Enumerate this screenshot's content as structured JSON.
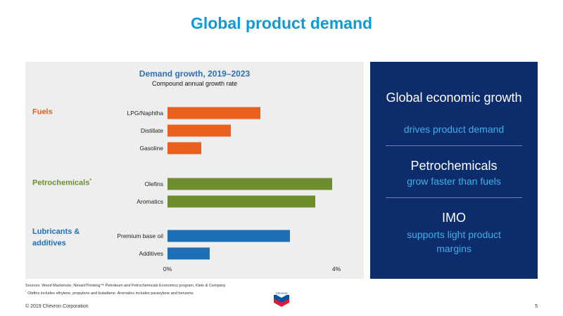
{
  "title": "Global product demand",
  "chart_data": {
    "type": "bar",
    "orientation": "horizontal",
    "title": "Demand growth, 2019–2023",
    "subtitle": "Compound annual growth rate",
    "xlim": [
      0,
      4
    ],
    "x_ticks": [
      {
        "value": 0,
        "label": "0%"
      },
      {
        "value": 4,
        "label": "4%"
      }
    ],
    "groups": [
      {
        "label": "Fuels",
        "marker": "",
        "color": "#e8601c"
      },
      {
        "label": "Petrochemicals",
        "marker": "*",
        "color": "#6d8e2f"
      },
      {
        "label": "Lubricants & additives",
        "marker": "",
        "color": "#1f6fb7"
      }
    ],
    "categories": [
      {
        "label": "LPG/Naphtha",
        "group": 0,
        "value": 2.2
      },
      {
        "label": "Distillate",
        "group": 0,
        "value": 1.5
      },
      {
        "label": "Gasoline",
        "group": 0,
        "value": 0.8
      },
      {
        "label": "Olefins",
        "group": 1,
        "value": 3.9
      },
      {
        "label": "Aromatics",
        "group": 1,
        "value": 3.5
      },
      {
        "label": "Premium base oil",
        "group": 2,
        "value": 2.9
      },
      {
        "label": "Additives",
        "group": 2,
        "value": 1.0
      }
    ]
  },
  "right_panel": {
    "item1": {
      "heading": "Global economic growth",
      "sub": "drives product demand"
    },
    "item2": {
      "heading": "Petrochemicals",
      "sub": "grow faster than fuels"
    },
    "item3": {
      "heading": "IMO",
      "sub": "supports light product margins"
    }
  },
  "footer": {
    "sources": "Sources: Wood Mackenzie, NexantThinking™ Petroleum and Petrochemicals Economics program, Klein & Company",
    "footnote_marker": "*",
    "footnote": "Olefins includes ethylene, propylene and butadiene. Aromatics includes paraxylene and benzene.",
    "copyright": "© 2019 Chevron Corporation",
    "page_number": "5"
  },
  "logo": {
    "text": "Chevron",
    "colors": {
      "top": "#0054a4",
      "bottom": "#e21836"
    }
  }
}
